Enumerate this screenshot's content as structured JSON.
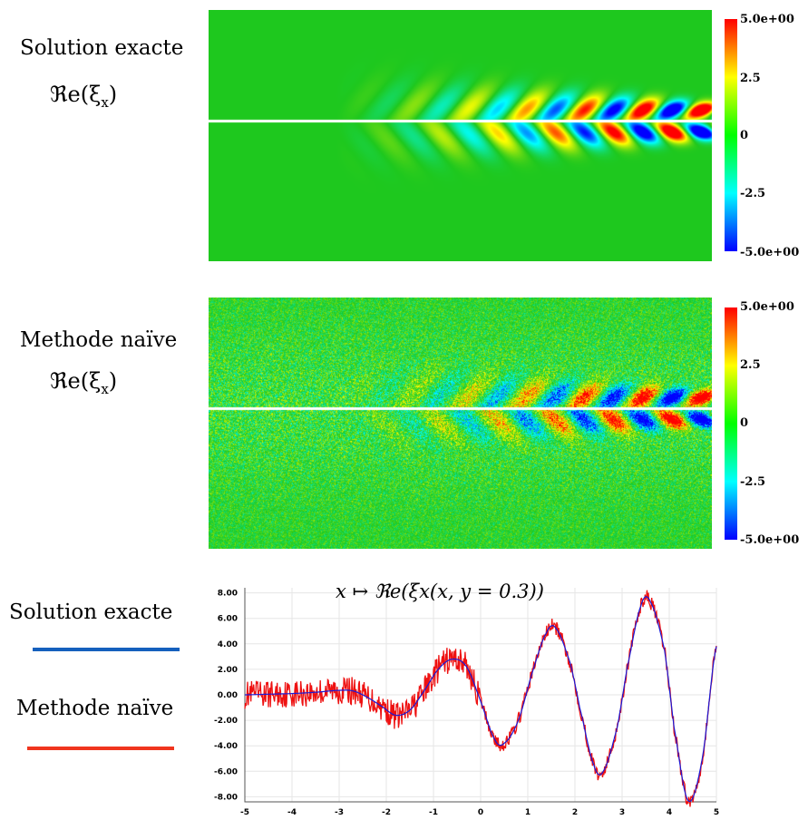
{
  "panels": [
    {
      "title": "Solution exacte",
      "quantity": "ℜe(ξ",
      "quantity_sub": "x",
      "quantity_close": ")",
      "colorbar": {
        "max": "5.0e+00",
        "t1": "2.5",
        "t2": "0",
        "t3": "-2.5",
        "min": "-5.0e+00"
      },
      "noisy": false
    },
    {
      "title": "Methode naïve",
      "quantity": "ℜe(ξ",
      "quantity_sub": "x",
      "quantity_close": ")",
      "colorbar": {
        "max": "5.0e+00",
        "t1": "2.5",
        "t2": "0",
        "t3": "-2.5",
        "min": "-5.0e+00"
      },
      "noisy": true
    }
  ],
  "colors": {
    "field_background": "#1ec81e",
    "exact_line": "#1560bd",
    "naive_line": "#f0351e",
    "plot_exact": "#1a1ad6",
    "plot_naive": "#ee1111",
    "colorbar": [
      "#0000ff",
      "#00ffff",
      "#00ff00",
      "#ffff00",
      "#ff0000"
    ]
  },
  "legend": {
    "exact_label": "Solution exacte",
    "naive_label": "Methode naïve"
  },
  "chart_data": {
    "type": "line",
    "title": "x ↦ ℜe(ξx(x, y = 0.3))",
    "xlim": [
      -5,
      5
    ],
    "ylim": [
      -8.4,
      8.4
    ],
    "x_ticks": [
      "-5",
      "-4",
      "-3",
      "-2",
      "-1",
      "0",
      "1",
      "2",
      "3",
      "4",
      "5"
    ],
    "y_ticks": [
      "8.00",
      "6.00",
      "4.00",
      "2.00",
      "0.00",
      "-2.00",
      "-4.00",
      "-6.00",
      "-8.00"
    ],
    "series": [
      {
        "name": "Solution exacte",
        "x": [
          -5,
          -4.5,
          -4,
          -3.5,
          -3,
          -2.7,
          -2.4,
          -2.1,
          -1.8,
          -1.5,
          -1.2,
          -0.9,
          -0.6,
          -0.3,
          0,
          0.3,
          0.5,
          0.8,
          1.1,
          1.4,
          1.6,
          1.9,
          2.1,
          2.4,
          2.6,
          2.9,
          3.1,
          3.4,
          3.6,
          3.9,
          4.1,
          4.4,
          4.7,
          5
        ],
        "y": [
          0.0,
          0.05,
          0.1,
          0.2,
          0.35,
          0.3,
          -0.2,
          -0.9,
          -1.6,
          -1.2,
          0.3,
          2.0,
          2.8,
          2.2,
          -0.5,
          -3.5,
          -3.8,
          -2.0,
          1.8,
          4.9,
          5.2,
          2.5,
          -1.0,
          -5.5,
          -6.0,
          -2.5,
          2.0,
          7.0,
          7.3,
          3.5,
          -2.5,
          -8.3,
          -5.0,
          3.8
        ]
      },
      {
        "name": "Methode naïve",
        "x": [
          -5,
          5
        ],
        "y": [
          0,
          3.8
        ]
      }
    ]
  }
}
